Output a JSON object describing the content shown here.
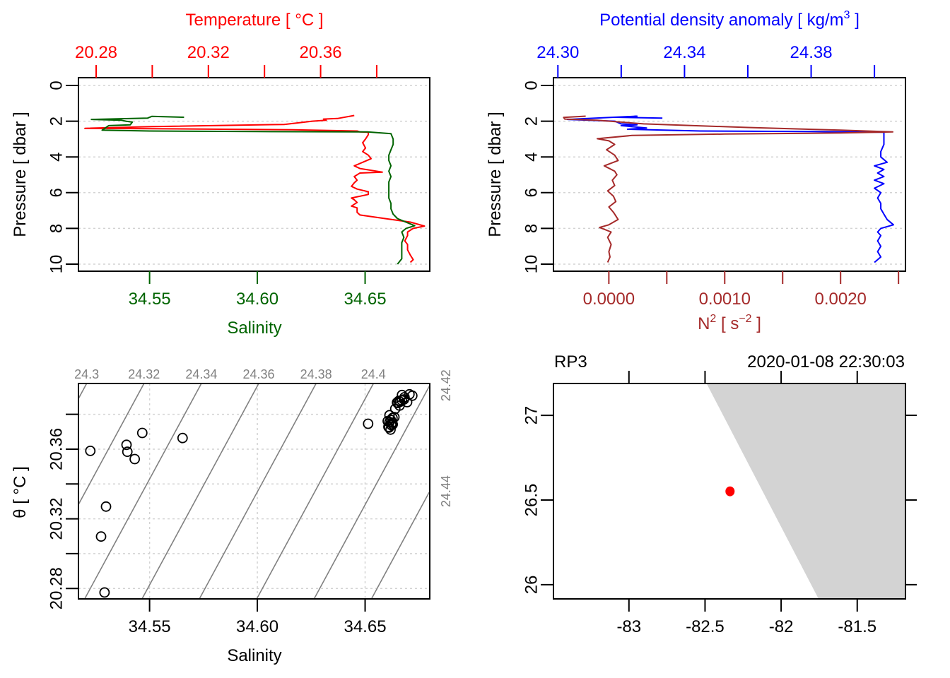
{
  "colors": {
    "temperature": "#ff0000",
    "salinity": "#006400",
    "density": "#0000ff",
    "n2": "#a52a2a",
    "isopycnal": "#808080",
    "land": "#d3d3d3",
    "station": "#ff0000",
    "axis": "#000000",
    "grid": "#d3d3d3"
  },
  "chart_data": [
    {
      "id": "ts-profile",
      "type": "line",
      "ylabel": "Pressure [ dbar ]",
      "ylim": [
        0,
        10
      ],
      "yreverse": true,
      "yticks": [
        "0",
        "2",
        "4",
        "6",
        "8",
        "10"
      ],
      "xlabel_bottom": "Salinity",
      "xticks_bottom": [
        "34.55",
        "34.60",
        "34.65"
      ],
      "xlim_bottom": [
        34.517,
        34.68
      ],
      "xlabel_top": "Temperature [ °C ]",
      "xticks_top": [
        "20.28",
        "20.32",
        "20.36"
      ],
      "xticks_top_minor": [
        "20.30",
        "20.34",
        "20.38"
      ],
      "xlim_top": [
        20.2737,
        20.3989
      ],
      "grid": true,
      "series": [
        {
          "name": "Temperature",
          "axis": "top",
          "points": [
            [
              20.372,
              1.68
            ],
            [
              20.366,
              1.85
            ],
            [
              20.361,
              1.88
            ],
            [
              20.362,
              1.95
            ],
            [
              20.357,
              2.0
            ],
            [
              20.347,
              2.18
            ],
            [
              20.3,
              2.3
            ],
            [
              20.276,
              2.4
            ],
            [
              20.3,
              2.42
            ],
            [
              20.35,
              2.48
            ],
            [
              20.373,
              2.55
            ],
            [
              20.374,
              2.6
            ],
            [
              20.377,
              2.62
            ],
            [
              20.377,
              2.75
            ],
            [
              20.376,
              3.0
            ],
            [
              20.375,
              3.2
            ],
            [
              20.376,
              3.5
            ],
            [
              20.375,
              3.7
            ],
            [
              20.377,
              3.9
            ],
            [
              20.378,
              4.1
            ],
            [
              20.375,
              4.3
            ],
            [
              20.372,
              4.5
            ],
            [
              20.374,
              4.65
            ],
            [
              20.382,
              4.85
            ],
            [
              20.374,
              4.9
            ],
            [
              20.372,
              5.1
            ],
            [
              20.373,
              5.3
            ],
            [
              20.372,
              5.45
            ],
            [
              20.371,
              5.65
            ],
            [
              20.373,
              5.8
            ],
            [
              20.377,
              5.95
            ],
            [
              20.377,
              6.1
            ],
            [
              20.371,
              6.3
            ],
            [
              20.372,
              6.4
            ],
            [
              20.373,
              6.55
            ],
            [
              20.371,
              6.75
            ],
            [
              20.373,
              6.85
            ],
            [
              20.373,
              7.1
            ],
            [
              20.374,
              7.25
            ],
            [
              20.383,
              7.45
            ],
            [
              20.392,
              7.65
            ],
            [
              20.397,
              7.87
            ],
            [
              20.393,
              8.0
            ],
            [
              20.391,
              8.2
            ],
            [
              20.391,
              8.4
            ],
            [
              20.39,
              8.7
            ],
            [
              20.391,
              8.9
            ],
            [
              20.391,
              9.2
            ],
            [
              20.392,
              9.5
            ],
            [
              20.393,
              9.75
            ],
            [
              20.392,
              9.9
            ]
          ]
        },
        {
          "name": "Salinity",
          "axis": "bottom",
          "points": [
            [
              34.566,
              1.78
            ],
            [
              34.551,
              1.73
            ],
            [
              34.549,
              1.83
            ],
            [
              34.523,
              1.9
            ],
            [
              34.537,
              1.95
            ],
            [
              34.539,
              2.0
            ],
            [
              34.542,
              2.05
            ],
            [
              34.541,
              2.2
            ],
            [
              34.531,
              2.25
            ],
            [
              34.528,
              2.5
            ],
            [
              34.55,
              2.55
            ],
            [
              34.6,
              2.58
            ],
            [
              34.651,
              2.6
            ],
            [
              34.662,
              2.7
            ],
            [
              34.663,
              3.0
            ],
            [
              34.663,
              3.3
            ],
            [
              34.662,
              3.6
            ],
            [
              34.661,
              3.9
            ],
            [
              34.661,
              4.2
            ],
            [
              34.662,
              4.5
            ],
            [
              34.661,
              4.8
            ],
            [
              34.662,
              5.1
            ],
            [
              34.661,
              5.4
            ],
            [
              34.661,
              5.7
            ],
            [
              34.661,
              6.0
            ],
            [
              34.661,
              6.3
            ],
            [
              34.662,
              6.6
            ],
            [
              34.662,
              6.9
            ],
            [
              34.663,
              7.2
            ],
            [
              34.665,
              7.45
            ],
            [
              34.668,
              7.6
            ],
            [
              34.673,
              7.85
            ],
            [
              34.669,
              8.0
            ],
            [
              34.667,
              8.2
            ],
            [
              34.668,
              8.5
            ],
            [
              34.667,
              8.8
            ],
            [
              34.667,
              9.1
            ],
            [
              34.667,
              9.4
            ],
            [
              34.667,
              9.7
            ],
            [
              34.665,
              10.0
            ]
          ]
        }
      ]
    },
    {
      "id": "density-profile",
      "type": "line",
      "ylabel": "Pressure [ dbar ]",
      "ylim": [
        0,
        10
      ],
      "yreverse": true,
      "yticks": [
        "0",
        "2",
        "4",
        "6",
        "8",
        "10"
      ],
      "xlabel_top": "Potential density anomaly [ kg/m³ ]",
      "xlabel_top_parts": [
        "Potential density anomaly [ kg/m",
        "3",
        " ]"
      ],
      "xticks_top": [
        "24.30",
        "24.34",
        "24.38"
      ],
      "xticks_top_minor": [
        "24.32",
        "24.36",
        "24.40"
      ],
      "xlim_top": [
        24.2986,
        24.4098
      ],
      "xlabel_bottom_parts": [
        "N",
        "2",
        " [ s",
        "−2",
        " ]"
      ],
      "xticks_bottom": [
        "0.0000",
        "0.0010",
        "0.0020"
      ],
      "xticks_bottom_minor": [
        "0.0005",
        "0.0015",
        "0.0025"
      ],
      "xlim_bottom": [
        -0.000478,
        0.00256
      ],
      "grid": true,
      "series": [
        {
          "name": "Potential density anomaly",
          "axis": "top",
          "points": [
            [
              24.333,
              1.83
            ],
            [
              24.318,
              1.78
            ],
            [
              24.325,
              1.72
            ],
            [
              24.303,
              1.9
            ],
            [
              24.318,
              2.0
            ],
            [
              24.32,
              2.15
            ],
            [
              24.325,
              2.2
            ],
            [
              24.32,
              2.25
            ],
            [
              24.328,
              2.38
            ],
            [
              24.322,
              2.45
            ],
            [
              24.345,
              2.55
            ],
            [
              24.38,
              2.58
            ],
            [
              24.403,
              2.62
            ],
            [
              24.403,
              2.9
            ],
            [
              24.403,
              3.3
            ],
            [
              24.402,
              3.7
            ],
            [
              24.402,
              4.0
            ],
            [
              24.404,
              4.3
            ],
            [
              24.4,
              4.5
            ],
            [
              24.403,
              4.7
            ],
            [
              24.401,
              4.9
            ],
            [
              24.403,
              5.1
            ],
            [
              24.4,
              5.3
            ],
            [
              24.403,
              5.5
            ],
            [
              24.4,
              5.75
            ],
            [
              24.402,
              6.0
            ],
            [
              24.401,
              6.3
            ],
            [
              24.402,
              6.6
            ],
            [
              24.402,
              6.9
            ],
            [
              24.403,
              7.2
            ],
            [
              24.404,
              7.5
            ],
            [
              24.406,
              7.8
            ],
            [
              24.402,
              8.0
            ],
            [
              24.401,
              8.2
            ],
            [
              24.402,
              8.4
            ],
            [
              24.401,
              8.7
            ],
            [
              24.402,
              9.0
            ],
            [
              24.401,
              9.3
            ],
            [
              24.402,
              9.6
            ],
            [
              24.4,
              9.9
            ]
          ]
        },
        {
          "name": "N2",
          "axis": "bottom",
          "points": [
            [
              -0.0002,
              1.72
            ],
            [
              -0.00039,
              1.79
            ],
            [
              -0.00038,
              1.88
            ],
            [
              -0.0001,
              1.95
            ],
            [
              0.0003,
              2.15
            ],
            [
              0.0012,
              2.35
            ],
            [
              0.002,
              2.5
            ],
            [
              0.00245,
              2.6
            ],
            [
              0.002,
              2.66
            ],
            [
              0.001,
              2.72
            ],
            [
              0.0002,
              2.8
            ],
            [
              -0.0001,
              2.98
            ],
            [
              0.0,
              3.1
            ],
            [
              5e-05,
              3.3
            ],
            [
              -2e-05,
              3.6
            ],
            [
              5e-05,
              3.9
            ],
            [
              8e-05,
              4.2
            ],
            [
              -4e-05,
              4.5
            ],
            [
              5e-05,
              4.8
            ],
            [
              7e-05,
              5.0
            ],
            [
              3e-05,
              5.3
            ],
            [
              5e-05,
              5.6
            ],
            [
              -1e-05,
              5.9
            ],
            [
              4e-05,
              6.2
            ],
            [
              6e-05,
              6.5
            ],
            [
              0.0,
              6.8
            ],
            [
              4e-05,
              7.1
            ],
            [
              8e-05,
              7.5
            ],
            [
              0.0,
              7.8
            ],
            [
              -8e-05,
              7.95
            ],
            [
              2e-05,
              8.2
            ],
            [
              -1e-05,
              8.5
            ],
            [
              2e-05,
              8.9
            ],
            [
              0.0,
              9.3
            ],
            [
              1e-05,
              9.6
            ],
            [
              -1e-05,
              9.9
            ]
          ]
        }
      ]
    },
    {
      "id": "ts-diagram",
      "type": "scatter",
      "xlabel": "Salinity",
      "ylabel": "θ [ °C ]",
      "xticks": [
        "34.55",
        "34.60",
        "34.65"
      ],
      "xlim": [
        34.517,
        34.68
      ],
      "yticks": [
        "20.28",
        "20.32",
        "20.36"
      ],
      "ytick_values_all": [
        20.28,
        20.3,
        20.32,
        20.34,
        20.36,
        20.38
      ],
      "ylim": [
        20.274,
        20.3977
      ],
      "grid": true,
      "isopycnals": {
        "labels_top": [
          "24.3",
          "24.32",
          "24.34",
          "24.36",
          "24.38",
          "24.4"
        ],
        "labels_right": [
          "24.42",
          "24.44"
        ],
        "values": [
          24.28,
          24.3,
          24.32,
          24.34,
          24.36,
          24.38,
          24.4,
          24.42,
          24.44
        ]
      },
      "points": [
        [
          34.5225,
          20.359
        ],
        [
          34.5393,
          20.3625
        ],
        [
          34.5397,
          20.3585
        ],
        [
          34.5431,
          20.3543
        ],
        [
          34.5466,
          20.3693
        ],
        [
          34.5653,
          20.3664
        ],
        [
          34.5298,
          20.327
        ],
        [
          34.5275,
          20.3098
        ],
        [
          34.5291,
          20.2777
        ],
        [
          34.6514,
          20.3746
        ],
        [
          34.6613,
          20.3755
        ],
        [
          34.6608,
          20.3728
        ],
        [
          34.6618,
          20.3712
        ],
        [
          34.6622,
          20.3738
        ],
        [
          34.6605,
          20.3761
        ],
        [
          34.6627,
          20.3779
        ],
        [
          34.6613,
          20.3795
        ],
        [
          34.6636,
          20.3784
        ],
        [
          34.6628,
          20.3742
        ],
        [
          34.6611,
          20.3724
        ],
        [
          34.6619,
          20.3768
        ],
        [
          34.6625,
          20.3752
        ],
        [
          34.665,
          20.3865
        ],
        [
          34.6662,
          20.3872
        ],
        [
          34.667,
          20.388
        ],
        [
          34.668,
          20.3885
        ],
        [
          34.666,
          20.385
        ],
        [
          34.664,
          20.3832
        ],
        [
          34.6683,
          20.3898
        ],
        [
          34.6695,
          20.387
        ],
        [
          34.6706,
          20.3915
        ],
        [
          34.6719,
          20.3907
        ],
        [
          34.6671,
          20.3911
        ],
        [
          34.6656,
          20.3877
        ],
        [
          34.6648,
          20.3868
        ]
      ]
    },
    {
      "id": "station-map",
      "type": "scatter",
      "title_left": "RP3",
      "title_right": "2020-01-08 22:30:03",
      "xticks": [
        "-83",
        "-82.5",
        "-82",
        "-81.5"
      ],
      "xlim": [
        -83.496,
        -81.183
      ],
      "yticks": [
        "26",
        "26.5",
        "27"
      ],
      "ylim": [
        25.916,
        27.188
      ],
      "land_polygon": [
        [
          -82.49,
          27.188
        ],
        [
          -81.183,
          27.188
        ],
        [
          -81.183,
          25.916
        ],
        [
          -81.754,
          25.916
        ]
      ],
      "points": [
        [
          -82.336,
          26.551
        ]
      ]
    }
  ]
}
